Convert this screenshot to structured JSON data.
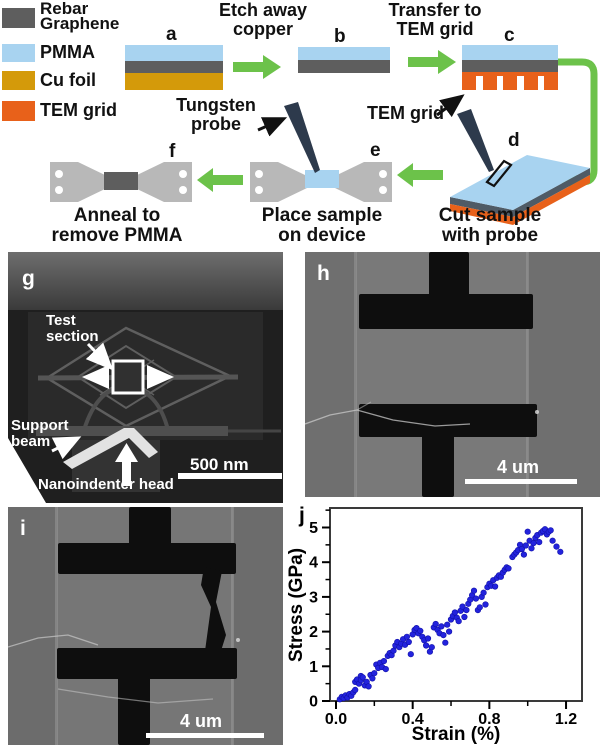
{
  "legend": {
    "items": [
      {
        "label": "Rebar\nGraphene",
        "color": "#5e5e5e"
      },
      {
        "label": "PMMA",
        "color": "#a8d3f0"
      },
      {
        "label": "Cu foil",
        "color": "#d49a0a"
      },
      {
        "label": "TEM grid",
        "color": "#e8611a"
      }
    ]
  },
  "schematic": {
    "titles": {
      "etch": "Etch away\ncopper",
      "transfer": "Transfer to\nTEM grid"
    },
    "annotations": {
      "tungsten": "Tungsten\nprobe",
      "tem_grid": "TEM grid"
    },
    "captions": {
      "anneal": "Anneal to\nremove PMMA",
      "place": "Place sample\non device",
      "cut": "Cut sample\nwith probe"
    },
    "panel_labels": {
      "a": "a",
      "b": "b",
      "c": "c",
      "d": "d",
      "e": "e",
      "f": "f"
    },
    "colors": {
      "arrow_green": "#6cc24a",
      "probe_navy": "#2d3a4c",
      "device_gray": "#b8b8b8",
      "sample_dark": "#5e5e5e",
      "sample_blue": "#a8d3f0"
    }
  },
  "sem_panels": {
    "g": {
      "label": "g",
      "test_section_line1": "Test",
      "test_section_line2": "section",
      "support_beam_line1": "Support",
      "support_beam_line2": "beam",
      "nanoindenter": "Nanoindenter head",
      "scale_bar": "500 nm"
    },
    "h": {
      "label": "h",
      "scale_bar": "4 um"
    },
    "i": {
      "label": "i",
      "scale_bar": "4 um"
    }
  },
  "chart_data": {
    "type": "scatter",
    "panel_label": "j",
    "title": "",
    "xlabel": "Strain (%)",
    "ylabel": "Stress (GPa)",
    "xlim": [
      0,
      1.28
    ],
    "ylim": [
      0,
      5.55
    ],
    "grid": false,
    "legend_position": "none",
    "x_ticks": [
      0.0,
      0.4,
      0.8,
      1.2
    ],
    "x_tick_labels": [
      "0.0",
      "0.4",
      "0.8",
      "1.2"
    ],
    "x_minor_ticks": [
      0.2,
      0.6,
      1.0
    ],
    "y_ticks": [
      0,
      1,
      2,
      3,
      4,
      5
    ],
    "y_tick_labels": [
      "0",
      "1",
      "2",
      "3",
      "4",
      "5"
    ],
    "y_minor_ticks": [
      0.5,
      1.5,
      2.5,
      3.5,
      4.5,
      5.5
    ],
    "marker_color": "#2323dd",
    "points": [
      [
        0.02,
        0.05
      ],
      [
        0.03,
        0.12
      ],
      [
        0.04,
        0.08
      ],
      [
        0.05,
        0.16
      ],
      [
        0.06,
        0.1
      ],
      [
        0.07,
        0.2
      ],
      [
        0.08,
        0.15
      ],
      [
        0.09,
        0.25
      ],
      [
        0.1,
        0.32
      ],
      [
        0.1,
        0.55
      ],
      [
        0.11,
        0.62
      ],
      [
        0.12,
        0.5
      ],
      [
        0.13,
        0.72
      ],
      [
        0.13,
        0.6
      ],
      [
        0.14,
        0.68
      ],
      [
        0.15,
        0.45
      ],
      [
        0.16,
        0.55
      ],
      [
        0.17,
        0.42
      ],
      [
        0.18,
        0.75
      ],
      [
        0.19,
        0.65
      ],
      [
        0.2,
        0.8
      ],
      [
        0.21,
        1.05
      ],
      [
        0.22,
        0.95
      ],
      [
        0.23,
        1.1
      ],
      [
        0.24,
        0.98
      ],
      [
        0.25,
        1.15
      ],
      [
        0.26,
        0.92
      ],
      [
        0.27,
        1.3
      ],
      [
        0.28,
        1.38
      ],
      [
        0.29,
        1.32
      ],
      [
        0.3,
        1.45
      ],
      [
        0.31,
        1.6
      ],
      [
        0.32,
        1.7
      ],
      [
        0.33,
        1.55
      ],
      [
        0.34,
        1.65
      ],
      [
        0.35,
        1.78
      ],
      [
        0.36,
        1.62
      ],
      [
        0.37,
        1.85
      ],
      [
        0.38,
        1.7
      ],
      [
        0.39,
        1.35
      ],
      [
        0.4,
        1.92
      ],
      [
        0.41,
        2.05
      ],
      [
        0.42,
        2.1
      ],
      [
        0.43,
        1.95
      ],
      [
        0.44,
        2.02
      ],
      [
        0.45,
        1.85
      ],
      [
        0.46,
        1.75
      ],
      [
        0.47,
        1.6
      ],
      [
        0.48,
        1.8
      ],
      [
        0.49,
        1.42
      ],
      [
        0.5,
        1.55
      ],
      [
        0.51,
        2.12
      ],
      [
        0.52,
        2.22
      ],
      [
        0.53,
        2.05
      ],
      [
        0.54,
        1.95
      ],
      [
        0.55,
        2.15
      ],
      [
        0.56,
        1.9
      ],
      [
        0.57,
        1.68
      ],
      [
        0.58,
        2.2
      ],
      [
        0.59,
        2.0
      ],
      [
        0.6,
        2.35
      ],
      [
        0.61,
        2.45
      ],
      [
        0.62,
        2.55
      ],
      [
        0.63,
        2.4
      ],
      [
        0.64,
        2.3
      ],
      [
        0.65,
        2.6
      ],
      [
        0.66,
        2.72
      ],
      [
        0.67,
        2.42
      ],
      [
        0.68,
        2.62
      ],
      [
        0.69,
        2.8
      ],
      [
        0.7,
        2.92
      ],
      [
        0.71,
        3.05
      ],
      [
        0.72,
        3.18
      ],
      [
        0.73,
        2.95
      ],
      [
        0.74,
        2.62
      ],
      [
        0.75,
        2.7
      ],
      [
        0.76,
        3.0
      ],
      [
        0.77,
        3.12
      ],
      [
        0.78,
        2.78
      ],
      [
        0.79,
        3.28
      ],
      [
        0.8,
        3.38
      ],
      [
        0.81,
        3.32
      ],
      [
        0.82,
        3.48
      ],
      [
        0.83,
        3.3
      ],
      [
        0.84,
        3.55
      ],
      [
        0.85,
        3.62
      ],
      [
        0.86,
        3.58
      ],
      [
        0.87,
        3.7
      ],
      [
        0.88,
        3.78
      ],
      [
        0.89,
        3.85
      ],
      [
        0.9,
        3.82
      ],
      [
        0.92,
        4.15
      ],
      [
        0.93,
        4.22
      ],
      [
        0.94,
        4.28
      ],
      [
        0.95,
        4.35
      ],
      [
        0.96,
        4.5
      ],
      [
        0.97,
        4.38
      ],
      [
        0.98,
        4.22
      ],
      [
        0.99,
        4.48
      ],
      [
        1.0,
        4.88
      ],
      [
        1.01,
        4.62
      ],
      [
        1.02,
        4.4
      ],
      [
        1.03,
        4.55
      ],
      [
        1.04,
        4.7
      ],
      [
        1.05,
        4.78
      ],
      [
        1.06,
        4.58
      ],
      [
        1.07,
        4.85
      ],
      [
        1.08,
        4.9
      ],
      [
        1.09,
        4.95
      ],
      [
        1.1,
        4.8
      ],
      [
        1.11,
        4.88
      ],
      [
        1.12,
        4.92
      ],
      [
        1.13,
        4.62
      ],
      [
        1.15,
        4.45
      ],
      [
        1.17,
        4.3
      ]
    ]
  }
}
